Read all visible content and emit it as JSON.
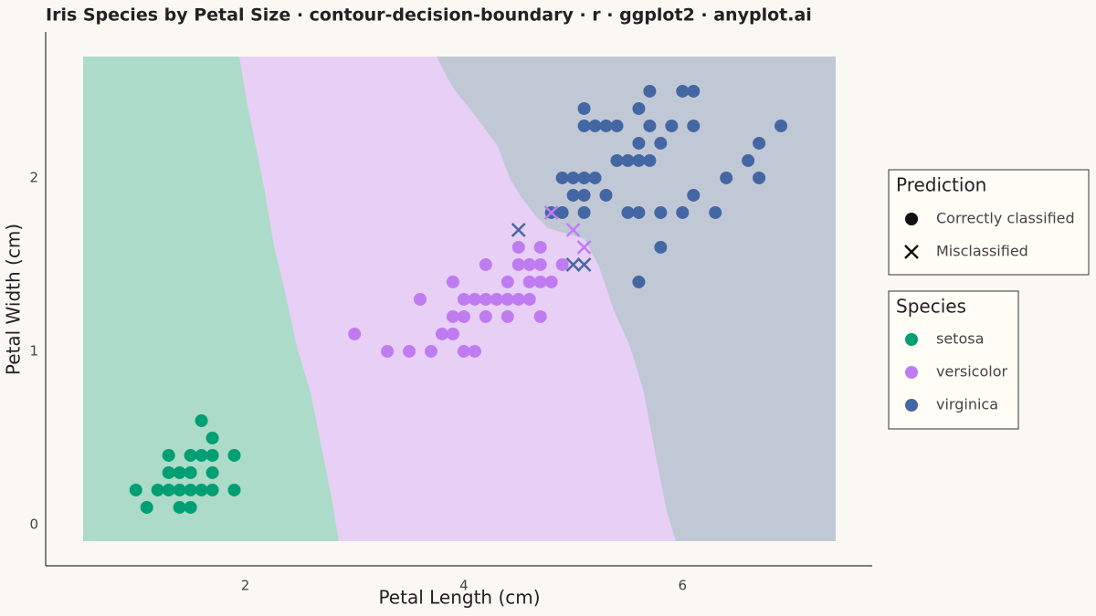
{
  "chart_data": {
    "type": "scatter",
    "title": "Iris Species by Petal Size · contour-decision-boundary · r · ggplot2 · anyplot.ai",
    "x_label": "Petal Length (cm)",
    "y_label": "Petal Width (cm)",
    "xlim": [
      0.175,
      7.735
    ],
    "ylim": [
      -0.237,
      2.842
    ],
    "xticks": [
      2,
      4,
      6
    ],
    "yticks": [
      0,
      1,
      2
    ],
    "grid": false,
    "series": [
      {
        "name": "setosa",
        "color": "#009e73",
        "x": [
          1.1,
          1.4,
          1.5,
          1.0,
          1.2,
          1.3,
          1.4,
          1.5,
          1.6,
          1.7,
          1.9,
          1.3,
          1.4,
          1.5,
          1.7,
          1.3,
          1.5,
          1.6,
          1.7,
          1.9,
          1.7,
          1.6
        ],
        "y": [
          0.1,
          0.1,
          0.1,
          0.2,
          0.2,
          0.2,
          0.2,
          0.2,
          0.2,
          0.2,
          0.2,
          0.3,
          0.3,
          0.3,
          0.3,
          0.4,
          0.4,
          0.4,
          0.4,
          0.4,
          0.5,
          0.6
        ],
        "correct": [
          true,
          true,
          true,
          true,
          true,
          true,
          true,
          true,
          true,
          true,
          true,
          true,
          true,
          true,
          true,
          true,
          true,
          true,
          true,
          true,
          true,
          true
        ]
      },
      {
        "name": "versicolor",
        "color": "#bf7cf0",
        "x": [
          3.3,
          3.5,
          3.7,
          4.0,
          4.1,
          3.0,
          3.8,
          3.9,
          3.9,
          4.0,
          4.2,
          4.4,
          4.7,
          3.6,
          4.0,
          4.1,
          4.2,
          4.3,
          4.4,
          4.5,
          4.6,
          3.9,
          4.4,
          4.6,
          4.7,
          4.8,
          4.2,
          4.5,
          4.6,
          4.7,
          4.9,
          4.5,
          4.7,
          5.1,
          5.0,
          4.8
        ],
        "y": [
          1.0,
          1.0,
          1.0,
          1.0,
          1.0,
          1.1,
          1.1,
          1.1,
          1.2,
          1.2,
          1.2,
          1.2,
          1.2,
          1.3,
          1.3,
          1.3,
          1.3,
          1.3,
          1.3,
          1.3,
          1.3,
          1.4,
          1.4,
          1.4,
          1.4,
          1.4,
          1.5,
          1.5,
          1.5,
          1.5,
          1.5,
          1.6,
          1.6,
          1.6,
          1.7,
          1.8
        ],
        "correct": [
          true,
          true,
          true,
          true,
          true,
          true,
          true,
          true,
          true,
          true,
          true,
          true,
          true,
          true,
          true,
          true,
          true,
          true,
          true,
          true,
          true,
          true,
          true,
          true,
          true,
          true,
          true,
          true,
          true,
          true,
          true,
          true,
          true,
          false,
          false,
          false
        ]
      },
      {
        "name": "virginica",
        "color": "#4467a3",
        "x": [
          5.6,
          5.0,
          5.1,
          5.8,
          4.5,
          4.8,
          4.9,
          5.1,
          5.5,
          5.6,
          5.8,
          6.0,
          6.3,
          5.0,
          5.1,
          5.3,
          6.1,
          4.9,
          5.0,
          5.1,
          5.2,
          6.4,
          6.7,
          5.4,
          5.5,
          5.6,
          5.7,
          6.6,
          5.6,
          5.8,
          6.7,
          5.1,
          5.2,
          5.3,
          5.4,
          5.7,
          5.9,
          6.1,
          6.9,
          5.1,
          5.6,
          5.7,
          6.0,
          6.1
        ],
        "y": [
          1.4,
          1.5,
          1.5,
          1.6,
          1.7,
          1.8,
          1.8,
          1.8,
          1.8,
          1.8,
          1.8,
          1.8,
          1.8,
          1.9,
          1.9,
          1.9,
          1.9,
          2.0,
          2.0,
          2.0,
          2.0,
          2.0,
          2.0,
          2.1,
          2.1,
          2.1,
          2.1,
          2.1,
          2.2,
          2.2,
          2.2,
          2.3,
          2.3,
          2.3,
          2.3,
          2.3,
          2.3,
          2.3,
          2.3,
          2.4,
          2.4,
          2.5,
          2.5,
          2.5
        ],
        "correct": [
          true,
          false,
          false,
          true,
          false,
          true,
          true,
          true,
          true,
          true,
          true,
          true,
          true,
          true,
          true,
          true,
          true,
          true,
          true,
          true,
          true,
          true,
          true,
          true,
          true,
          true,
          true,
          true,
          true,
          true,
          true,
          true,
          true,
          true,
          true,
          true,
          true,
          true,
          true,
          true,
          true,
          true,
          true,
          true
        ]
      }
    ],
    "legend": {
      "prediction_title": "Prediction",
      "prediction_labels": [
        "Correctly classified",
        "Misclassified"
      ],
      "species_title": "Species"
    }
  }
}
